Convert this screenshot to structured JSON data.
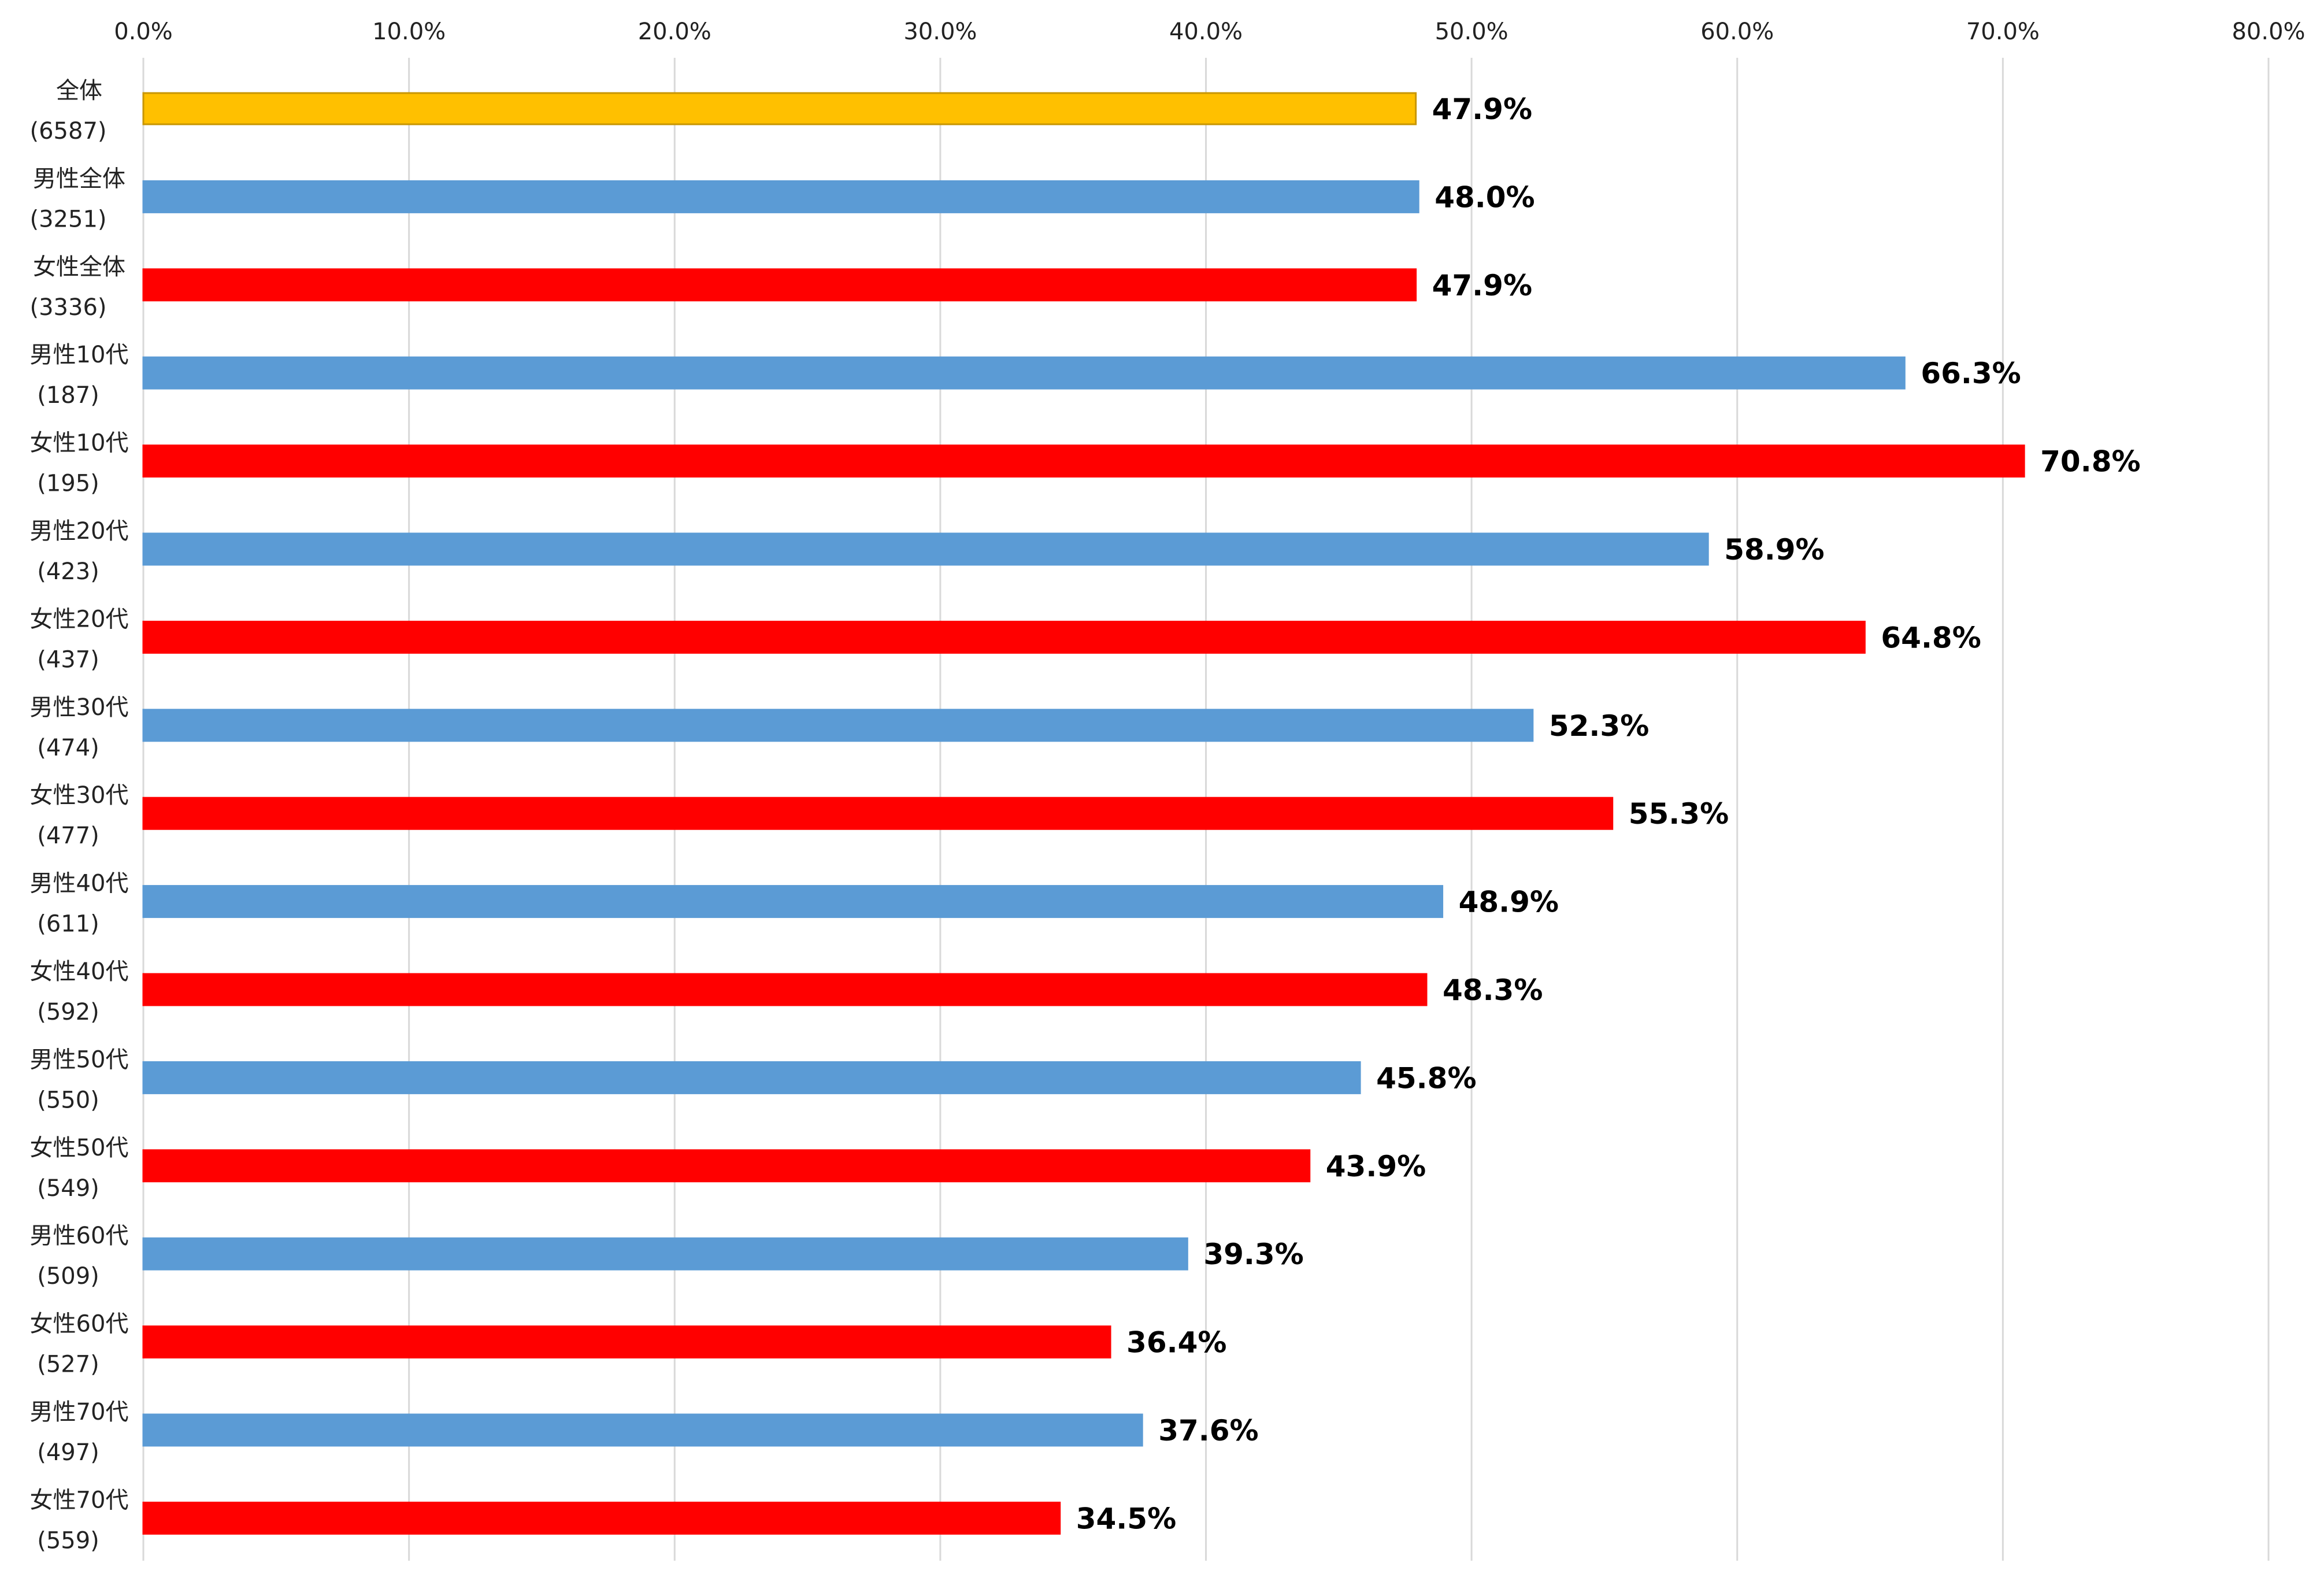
{
  "chart_data": {
    "type": "bar",
    "orientation": "horizontal",
    "title": "",
    "xlabel": "",
    "ylabel": "",
    "xlim": [
      0,
      80
    ],
    "axis_position": "top",
    "grid": true,
    "legend": "none",
    "tick_labels": [
      "0.0%",
      "10.0%",
      "20.0%",
      "30.0%",
      "40.0%",
      "50.0%",
      "60.0%",
      "70.0%",
      "80.0%"
    ],
    "categories": [
      {
        "name": "全体",
        "n": "(6587)"
      },
      {
        "name": "男性全体",
        "n": "(3251)"
      },
      {
        "name": "女性全体",
        "n": "(3336)"
      },
      {
        "name": "男性10代",
        "n": "(187)"
      },
      {
        "name": "女性10代",
        "n": "(195)"
      },
      {
        "name": "男性20代",
        "n": "(423)"
      },
      {
        "name": "女性20代",
        "n": "(437)"
      },
      {
        "name": "男性30代",
        "n": "(474)"
      },
      {
        "name": "女性30代",
        "n": "(477)"
      },
      {
        "name": "男性40代",
        "n": "(611)"
      },
      {
        "name": "女性40代",
        "n": "(592)"
      },
      {
        "name": "男性50代",
        "n": "(550)"
      },
      {
        "name": "女性50代",
        "n": "(549)"
      },
      {
        "name": "男性60代",
        "n": "(509)"
      },
      {
        "name": "女性60代",
        "n": "(527)"
      },
      {
        "name": "男性70代",
        "n": "(497)"
      },
      {
        "name": "女性70代",
        "n": "(559)"
      }
    ],
    "values": [
      47.9,
      48.0,
      47.9,
      66.3,
      70.8,
      58.9,
      64.8,
      52.3,
      55.3,
      48.9,
      48.3,
      45.8,
      43.9,
      39.3,
      36.4,
      37.6,
      34.5
    ],
    "value_labels": [
      "47.9%",
      "48.0%",
      "47.9%",
      "66.3%",
      "70.8%",
      "58.9%",
      "64.8%",
      "52.3%",
      "55.3%",
      "48.9%",
      "48.3%",
      "45.8%",
      "43.9%",
      "39.3%",
      "36.4%",
      "37.6%",
      "34.5%"
    ],
    "bar_colors": [
      "#ffc000",
      "#5b9bd5",
      "#ff0000",
      "#5b9bd5",
      "#ff0000",
      "#5b9bd5",
      "#ff0000",
      "#5b9bd5",
      "#ff0000",
      "#5b9bd5",
      "#ff0000",
      "#5b9bd5",
      "#ff0000",
      "#5b9bd5",
      "#ff0000",
      "#5b9bd5",
      "#ff0000"
    ],
    "bar_outline_colors": [
      "#c89600",
      "#5b9bd5",
      "#ff0000",
      "#5b9bd5",
      "#ff0000",
      "#5b9bd5",
      "#ff0000",
      "#5b9bd5",
      "#ff0000",
      "#5b9bd5",
      "#ff0000",
      "#5b9bd5",
      "#ff0000",
      "#5b9bd5",
      "#ff0000",
      "#5b9bd5",
      "#ff0000"
    ]
  }
}
